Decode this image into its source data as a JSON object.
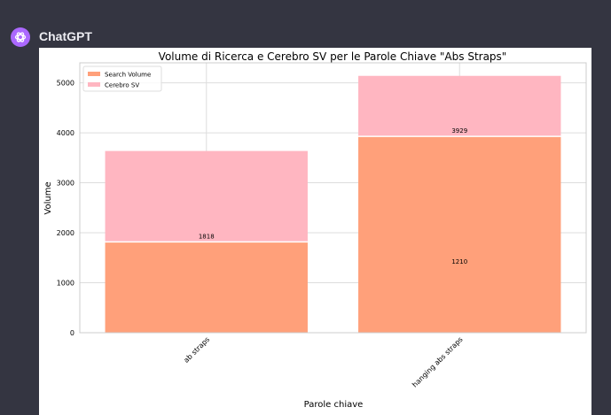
{
  "message": {
    "author": "ChatGPT",
    "avatar_icon": "openai-logo-icon",
    "avatar_color": "#ab68ff"
  },
  "chart_data": {
    "type": "bar",
    "stacked": true,
    "title": "Volume di Ricerca e Cerebro SV per le Parole Chiave \"Abs Straps\"",
    "xlabel": "Parole chiave",
    "ylabel": "Volume",
    "categories": [
      "ab straps",
      "hanging abs straps"
    ],
    "series": [
      {
        "name": "Search Volume",
        "values": [
          1818,
          3929
        ],
        "color": "#ffa07a"
      },
      {
        "name": "Cerebro SV",
        "values": [
          1818,
          1210
        ],
        "color": "#ffb6c1"
      }
    ],
    "data_labels": [
      {
        "category": 0,
        "text": "1818",
        "y": 1818
      },
      {
        "category": 1,
        "text": "3929",
        "y": 3929
      },
      {
        "category": 1,
        "text": "1210",
        "y": 1310
      }
    ],
    "yticks": [
      "0",
      "1000",
      "2000",
      "3000",
      "4000",
      "5000"
    ],
    "ylim": [
      0,
      5400
    ],
    "grid": true,
    "legend_position": "upper left"
  }
}
